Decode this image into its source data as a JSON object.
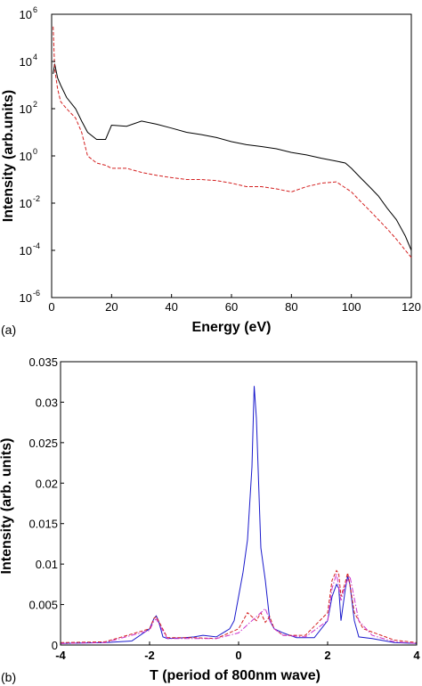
{
  "chart_data": [
    {
      "panel_label": "(a)",
      "type": "line",
      "xlabel": "Energy (eV)",
      "ylabel": "Intensity (arb.units)",
      "xlim": [
        0,
        120
      ],
      "ylim": [
        1e-06,
        1000000.0
      ],
      "yscale": "log",
      "x_ticks": [
        0,
        20,
        40,
        60,
        80,
        100,
        120
      ],
      "y_ticks": [
        {
          "base": "10",
          "exp": "-6",
          "value": 1e-06
        },
        {
          "base": "10",
          "exp": "-4",
          "value": 0.0001
        },
        {
          "base": "10",
          "exp": "-2",
          "value": 0.01
        },
        {
          "base": "10",
          "exp": "0",
          "value": 1
        },
        {
          "base": "10",
          "exp": "2",
          "value": 100
        },
        {
          "base": "10",
          "exp": "4",
          "value": 10000
        },
        {
          "base": "10",
          "exp": "6",
          "value": 1000000
        }
      ],
      "grid": false,
      "series": [
        {
          "color": "#000000",
          "style": "solid",
          "x": [
            0.5,
            1,
            2,
            3,
            5,
            8,
            10,
            12,
            15,
            18,
            20,
            25,
            30,
            35,
            40,
            45,
            50,
            55,
            60,
            65,
            70,
            75,
            80,
            85,
            90,
            95,
            98,
            100,
            103,
            106,
            109,
            112,
            115,
            118,
            120
          ],
          "y": [
            3000,
            8000,
            2000,
            1000,
            300,
            100,
            30,
            10,
            5,
            5,
            20,
            18,
            30,
            22,
            15,
            10,
            8,
            6,
            4,
            3,
            2.5,
            2,
            1.4,
            1.1,
            0.8,
            0.6,
            0.5,
            0.3,
            0.12,
            0.05,
            0.02,
            0.006,
            0.002,
            0.0004,
            0.0001
          ]
        },
        {
          "color": "#d42020",
          "style": "dashed",
          "x": [
            0.5,
            1,
            2,
            3,
            5,
            8,
            10,
            12,
            15,
            18,
            20,
            25,
            30,
            35,
            40,
            45,
            50,
            55,
            60,
            65,
            70,
            75,
            80,
            85,
            90,
            95,
            100,
            103,
            106,
            109,
            112,
            115,
            118,
            120
          ],
          "y": [
            300000,
            5000,
            700,
            200,
            100,
            40,
            10,
            1,
            0.5,
            0.4,
            0.3,
            0.3,
            0.2,
            0.15,
            0.12,
            0.1,
            0.1,
            0.09,
            0.07,
            0.05,
            0.05,
            0.04,
            0.03,
            0.05,
            0.07,
            0.08,
            0.03,
            0.012,
            0.005,
            0.002,
            0.0008,
            0.0003,
            0.0001,
            5e-05
          ]
        }
      ]
    },
    {
      "panel_label": "(b)",
      "type": "line",
      "xlabel": "T (period of 800nm wave)",
      "ylabel": "Intensity (arb. units)",
      "xlim": [
        -4,
        4
      ],
      "ylim": [
        0,
        0.035
      ],
      "x_ticks": [
        -4,
        -2,
        0,
        2,
        4
      ],
      "y_ticks": [
        0,
        0.005,
        0.01,
        0.015,
        0.02,
        0.025,
        0.03,
        0.035
      ],
      "y_tick_labels": [
        "0",
        "0.005",
        "0.01",
        "0.015",
        "0.02",
        "0.025",
        "0.03",
        "0.035"
      ],
      "grid": false,
      "series": [
        {
          "color": "#1a1acc",
          "style": "solid",
          "x": [
            -4,
            -3,
            -2.4,
            -2.0,
            -1.9,
            -1.85,
            -1.8,
            -1.7,
            -1.6,
            -1.2,
            -1.0,
            -0.8,
            -0.5,
            -0.2,
            -0.1,
            0.0,
            0.1,
            0.2,
            0.3,
            0.35,
            0.4,
            0.45,
            0.5,
            0.6,
            0.7,
            0.8,
            1.0,
            1.3,
            1.7,
            2.0,
            2.1,
            2.2,
            2.25,
            2.3,
            2.4,
            2.45,
            2.5,
            2.6,
            2.7,
            3.0,
            3.5,
            4.0
          ],
          "y": [
            0.0002,
            0.0003,
            0.0005,
            0.002,
            0.0033,
            0.0036,
            0.003,
            0.001,
            0.0008,
            0.0009,
            0.001,
            0.0012,
            0.001,
            0.002,
            0.003,
            0.006,
            0.009,
            0.013,
            0.022,
            0.032,
            0.028,
            0.02,
            0.012,
            0.008,
            0.003,
            0.002,
            0.0015,
            0.0009,
            0.0009,
            0.003,
            0.006,
            0.0075,
            0.007,
            0.003,
            0.007,
            0.0085,
            0.0075,
            0.003,
            0.001,
            0.0008,
            0.0003,
            0.0002
          ]
        },
        {
          "color": "#d42020",
          "style": "dashed",
          "x": [
            -4,
            -3,
            -2.0,
            -1.9,
            -1.85,
            -1.8,
            -1.6,
            -1.0,
            -0.5,
            0.0,
            0.2,
            0.3,
            0.4,
            0.5,
            0.6,
            0.7,
            0.8,
            1.0,
            1.5,
            2.0,
            2.1,
            2.2,
            2.25,
            2.3,
            2.4,
            2.45,
            2.5,
            2.6,
            2.8,
            3.5,
            4.0
          ],
          "y": [
            0.0003,
            0.0004,
            0.002,
            0.0033,
            0.0035,
            0.003,
            0.0009,
            0.0009,
            0.0008,
            0.002,
            0.004,
            0.0035,
            0.003,
            0.004,
            0.0028,
            0.0035,
            0.002,
            0.0012,
            0.0012,
            0.004,
            0.008,
            0.0092,
            0.0088,
            0.006,
            0.0078,
            0.0089,
            0.0075,
            0.004,
            0.002,
            0.0006,
            0.0003
          ]
        },
        {
          "color": "#cc33cc",
          "style": "dashdot",
          "x": [
            -4,
            -3,
            -2.0,
            -1.9,
            -1.85,
            -1.8,
            -1.6,
            -1.0,
            -0.5,
            0.0,
            0.3,
            0.5,
            0.6,
            0.7,
            0.8,
            1.0,
            1.5,
            2.0,
            2.1,
            2.2,
            2.3,
            2.4,
            2.5,
            2.7,
            3.0,
            3.5,
            4.0
          ],
          "y": [
            0.0002,
            0.0003,
            0.0018,
            0.003,
            0.0032,
            0.0027,
            0.0008,
            0.0008,
            0.0008,
            0.0015,
            0.003,
            0.004,
            0.0045,
            0.003,
            0.002,
            0.0012,
            0.001,
            0.003,
            0.007,
            0.0088,
            0.0055,
            0.0075,
            0.0085,
            0.003,
            0.0012,
            0.0004,
            0.0002
          ]
        }
      ]
    }
  ]
}
